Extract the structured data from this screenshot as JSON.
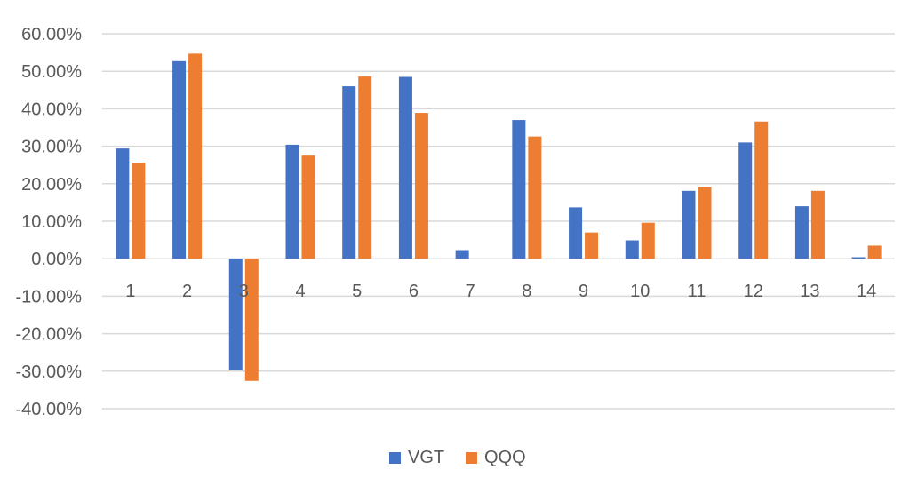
{
  "chart_data": {
    "type": "bar",
    "categories": [
      "1",
      "2",
      "3",
      "4",
      "5",
      "6",
      "7",
      "8",
      "9",
      "10",
      "11",
      "12",
      "13",
      "14"
    ],
    "series": [
      {
        "name": "VGT",
        "color": "#4472C4",
        "values": [
          29.4,
          52.7,
          -29.8,
          30.4,
          46.0,
          48.5,
          2.3,
          37.0,
          13.7,
          4.9,
          18.1,
          31.0,
          14.0,
          0.4
        ]
      },
      {
        "name": "QQQ",
        "color": "#ED7D31",
        "values": [
          25.6,
          54.7,
          -32.6,
          27.5,
          48.6,
          38.9,
          0.0,
          32.6,
          7.0,
          9.6,
          19.2,
          36.6,
          18.1,
          3.5
        ]
      }
    ],
    "ylim": [
      -40,
      60
    ],
    "yticks": [
      "60.00%",
      "50.00%",
      "40.00%",
      "30.00%",
      "20.00%",
      "10.00%",
      "0.00%",
      "-10.00%",
      "-20.00%",
      "-30.00%",
      "-40.00%"
    ],
    "ytick_values": [
      60,
      50,
      40,
      30,
      20,
      10,
      0,
      -10,
      -20,
      -30,
      -40
    ],
    "grid": true,
    "legend_position": "bottom",
    "title": "",
    "xlabel": "",
    "ylabel": ""
  }
}
